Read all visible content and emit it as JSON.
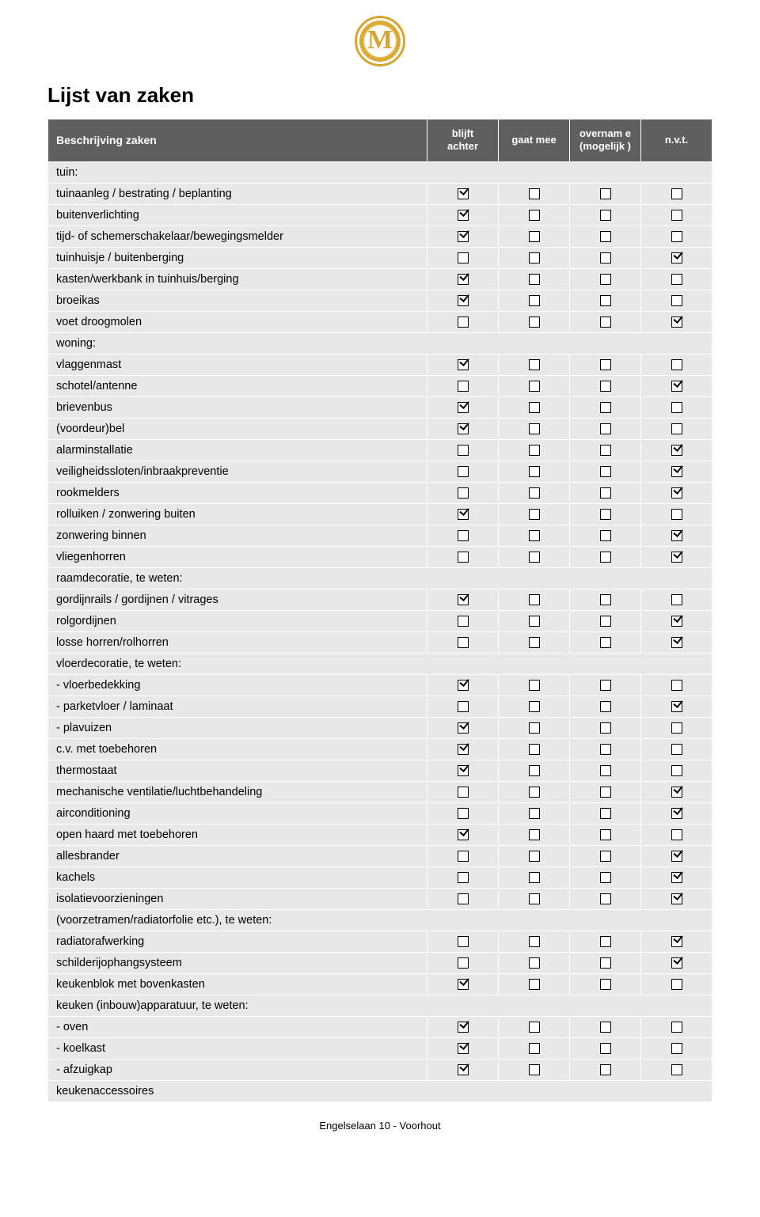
{
  "title": "Lijst van zaken",
  "footer": "Engelselaan 10 - Voorhout",
  "columns": {
    "desc": "Beschrijving zaken",
    "c1": "blijft achter",
    "c2": "gaat mee",
    "c3": "overnam e (mogelijk )",
    "c4": "n.v.t."
  },
  "colors": {
    "header_bg": "#5f5f5f",
    "header_fg": "#ffffff",
    "row_bg": "#e8e8e8",
    "page_bg": "#ffffff",
    "logo_gold": "#d9a531"
  },
  "rows": [
    {
      "label": "tuin:",
      "section": true
    },
    {
      "label": "tuinaanleg / bestrating / beplanting",
      "checks": [
        true,
        false,
        false,
        false
      ]
    },
    {
      "label": "buitenverlichting",
      "checks": [
        true,
        false,
        false,
        false
      ]
    },
    {
      "label": "tijd- of schemerschakelaar/bewegingsmelder",
      "checks": [
        true,
        false,
        false,
        false
      ]
    },
    {
      "label": "tuinhuisje / buitenberging",
      "checks": [
        false,
        false,
        false,
        true
      ]
    },
    {
      "label": "kasten/werkbank in tuinhuis/berging",
      "checks": [
        true,
        false,
        false,
        false
      ]
    },
    {
      "label": "broeikas",
      "checks": [
        true,
        false,
        false,
        false
      ]
    },
    {
      "label": "voet droogmolen",
      "checks": [
        false,
        false,
        false,
        true
      ]
    },
    {
      "label": "woning:",
      "section": true
    },
    {
      "label": "vlaggenmast",
      "checks": [
        true,
        false,
        false,
        false
      ]
    },
    {
      "label": "schotel/antenne",
      "checks": [
        false,
        false,
        false,
        true
      ]
    },
    {
      "label": "brievenbus",
      "checks": [
        true,
        false,
        false,
        false
      ]
    },
    {
      "label": "(voordeur)bel",
      "checks": [
        true,
        false,
        false,
        false
      ]
    },
    {
      "label": "alarminstallatie",
      "checks": [
        false,
        false,
        false,
        true
      ]
    },
    {
      "label": "veiligheidssloten/inbraakpreventie",
      "checks": [
        false,
        false,
        false,
        true
      ]
    },
    {
      "label": "rookmelders",
      "checks": [
        false,
        false,
        false,
        true
      ]
    },
    {
      "label": "rolluiken / zonwering buiten",
      "checks": [
        true,
        false,
        false,
        false
      ]
    },
    {
      "label": "zonwering binnen",
      "checks": [
        false,
        false,
        false,
        true
      ]
    },
    {
      "label": "vliegenhorren",
      "checks": [
        false,
        false,
        false,
        true
      ]
    },
    {
      "label": "raamdecoratie, te weten:",
      "section": true
    },
    {
      "label": "gordijnrails / gordijnen / vitrages",
      "checks": [
        true,
        false,
        false,
        false
      ]
    },
    {
      "label": "rolgordijnen",
      "checks": [
        false,
        false,
        false,
        true
      ]
    },
    {
      "label": "losse horren/rolhorren",
      "checks": [
        false,
        false,
        false,
        true
      ]
    },
    {
      "label": "vloerdecoratie, te weten:",
      "section": true
    },
    {
      "label": "-  vloerbedekking",
      "checks": [
        true,
        false,
        false,
        false
      ]
    },
    {
      "label": "-  parketvloer / laminaat",
      "checks": [
        false,
        false,
        false,
        true
      ]
    },
    {
      "label": "-  plavuizen",
      "checks": [
        true,
        false,
        false,
        false
      ]
    },
    {
      "label": "c.v. met toebehoren",
      "checks": [
        true,
        false,
        false,
        false
      ]
    },
    {
      "label": "thermostaat",
      "checks": [
        true,
        false,
        false,
        false
      ]
    },
    {
      "label": "mechanische ventilatie/luchtbehandeling",
      "checks": [
        false,
        false,
        false,
        true
      ]
    },
    {
      "label": "airconditioning",
      "checks": [
        false,
        false,
        false,
        true
      ]
    },
    {
      "label": "open haard met toebehoren",
      "checks": [
        true,
        false,
        false,
        false
      ]
    },
    {
      "label": "allesbrander",
      "checks": [
        false,
        false,
        false,
        true
      ]
    },
    {
      "label": "kachels",
      "checks": [
        false,
        false,
        false,
        true
      ]
    },
    {
      "label": "isolatievoorzieningen",
      "checks": [
        false,
        false,
        false,
        true
      ]
    },
    {
      "label": "(voorzetramen/radiatorfolie etc.), te weten:",
      "section": true
    },
    {
      "label": "radiatorafwerking",
      "checks": [
        false,
        false,
        false,
        true
      ]
    },
    {
      "label": "schilderijophangsysteem",
      "checks": [
        false,
        false,
        false,
        true
      ]
    },
    {
      "label": "keukenblok met bovenkasten",
      "checks": [
        true,
        false,
        false,
        false
      ]
    },
    {
      "label": "keuken (inbouw)apparatuur, te weten:",
      "section": true
    },
    {
      "label": "-  oven",
      "checks": [
        true,
        false,
        false,
        false
      ]
    },
    {
      "label": "-  koelkast",
      "checks": [
        true,
        false,
        false,
        false
      ]
    },
    {
      "label": "-  afzuigkap",
      "checks": [
        true,
        false,
        false,
        false
      ]
    },
    {
      "label": "keukenaccessoires",
      "section": true
    }
  ]
}
